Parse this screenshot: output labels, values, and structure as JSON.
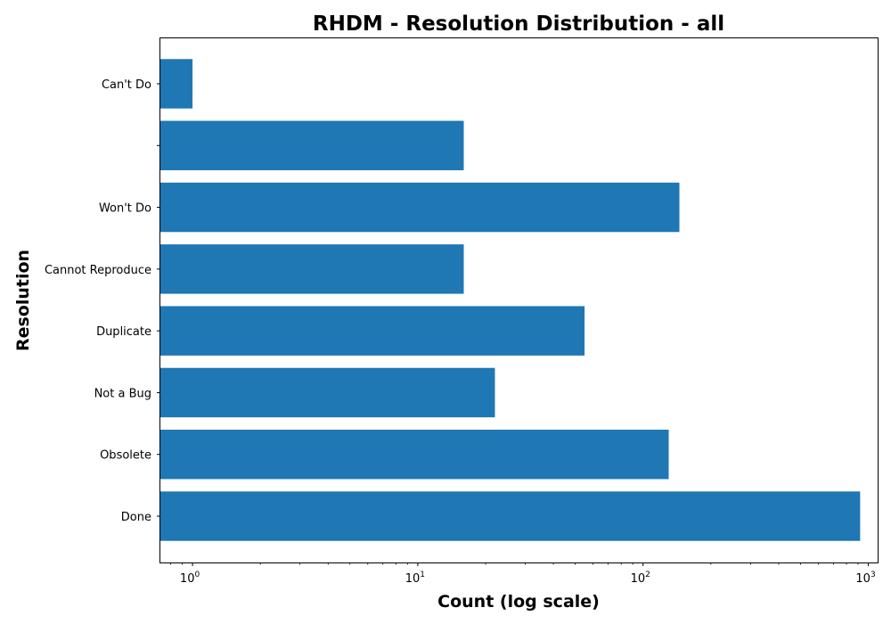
{
  "chart_data": {
    "type": "bar",
    "orientation": "horizontal",
    "title": "RHDM - Resolution Distribution - all",
    "xlabel": "Count (log scale)",
    "ylabel": "Resolution",
    "xscale": "log",
    "xlim": [
      0.72,
      1100
    ],
    "categories": [
      "Done",
      "Obsolete",
      "Not a Bug",
      "Duplicate",
      "Cannot Reproduce",
      "Won't Do",
      "",
      "Can't Do"
    ],
    "values": [
      920,
      130,
      22,
      55,
      16,
      145,
      16,
      1
    ],
    "x_ticks": [
      {
        "base": "10",
        "exp": "0"
      },
      {
        "base": "10",
        "exp": "1"
      },
      {
        "base": "10",
        "exp": "2"
      },
      {
        "base": "10",
        "exp": "3"
      }
    ],
    "bar_color": "#1f77b4",
    "grid": false,
    "legend": "none"
  }
}
